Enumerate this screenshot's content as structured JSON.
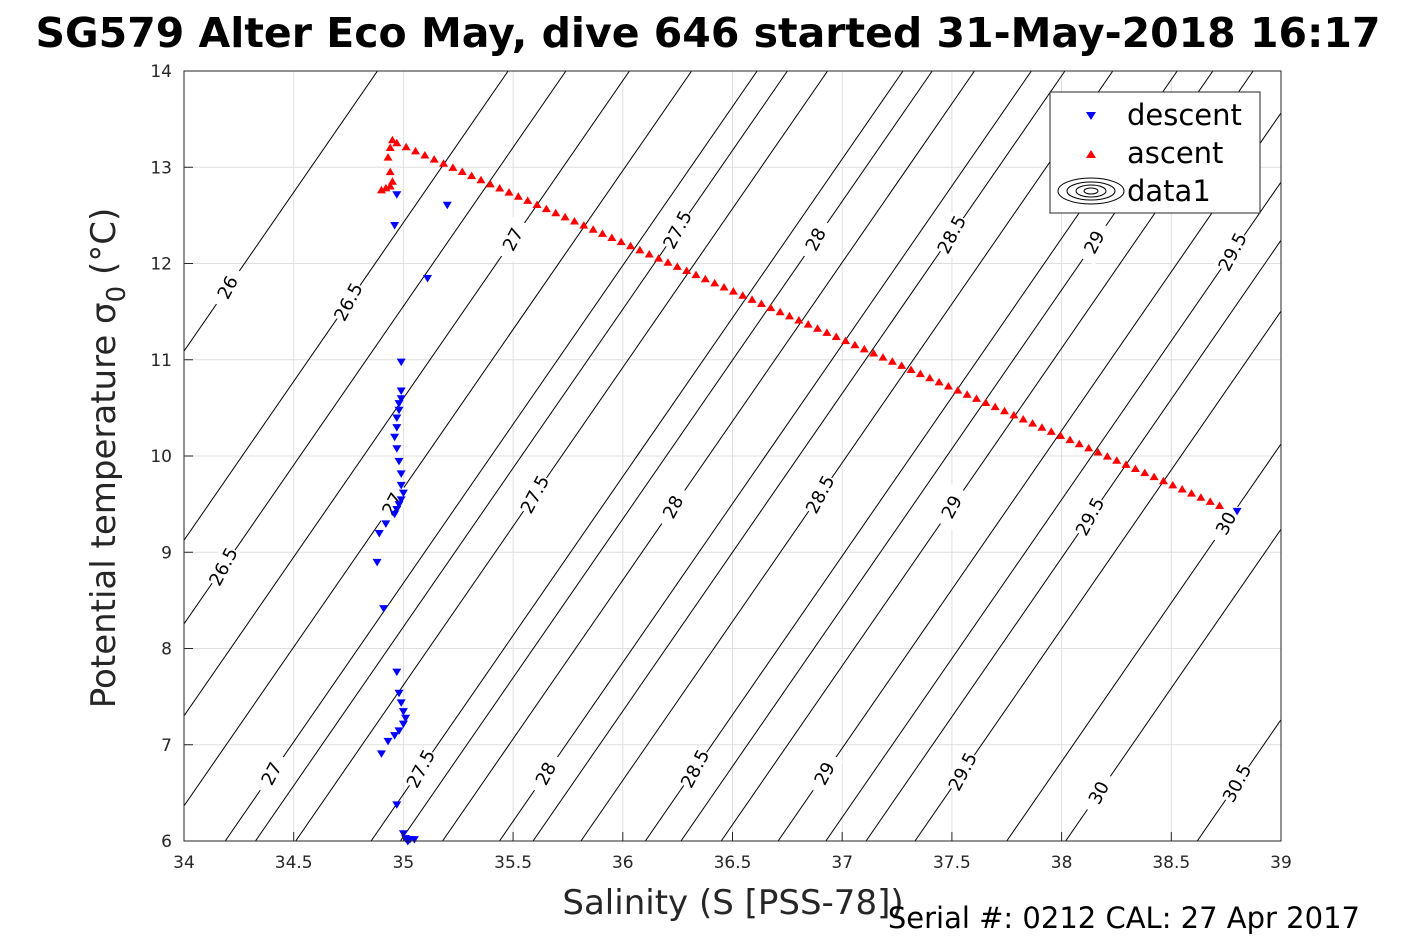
{
  "title": "SG579 Alter Eco May, dive 646 started 31-May-2018 16:17",
  "footer": "Serial #: 0212  CAL: 27 Apr 2017",
  "chart_data": {
    "type": "scatter",
    "xlabel": "Salinity (S [PSS-78])",
    "ylabel": "Potential temperature σ",
    "ylabel_subscript": "0",
    "ylabel_unit": "(°C)",
    "xlim": [
      34,
      39
    ],
    "ylim": [
      6,
      14
    ],
    "xticks": [
      34,
      34.5,
      35,
      35.5,
      36,
      36.5,
      37,
      37.5,
      38,
      38.5,
      39
    ],
    "xtick_labels": [
      "34",
      "34.5",
      "35",
      "35.5",
      "36",
      "36.5",
      "37",
      "37.5",
      "38",
      "38.5",
      "39"
    ],
    "yticks": [
      6,
      7,
      8,
      9,
      10,
      11,
      12,
      13,
      14
    ],
    "ytick_labels": [
      "6",
      "7",
      "8",
      "9",
      "10",
      "11",
      "12",
      "13",
      "14"
    ],
    "grid": true,
    "legend_position": "top-right",
    "series": [
      {
        "name": "descent",
        "marker": "triangle-down",
        "color": "#0000ff",
        "points": [
          [
            34.97,
            12.72
          ],
          [
            34.96,
            12.4
          ],
          [
            35.11,
            11.85
          ],
          [
            35.2,
            12.61
          ],
          [
            34.99,
            10.98
          ],
          [
            34.99,
            10.68
          ],
          [
            34.99,
            10.6
          ],
          [
            34.98,
            10.55
          ],
          [
            34.98,
            10.48
          ],
          [
            34.97,
            10.4
          ],
          [
            34.97,
            10.3
          ],
          [
            34.96,
            10.2
          ],
          [
            34.97,
            10.08
          ],
          [
            34.98,
            9.95
          ],
          [
            34.99,
            9.82
          ],
          [
            34.99,
            9.7
          ],
          [
            35.0,
            9.62
          ],
          [
            34.99,
            9.55
          ],
          [
            34.98,
            9.5
          ],
          [
            34.97,
            9.45
          ],
          [
            34.96,
            9.4
          ],
          [
            34.92,
            9.3
          ],
          [
            34.89,
            9.2
          ],
          [
            34.88,
            8.9
          ],
          [
            34.91,
            8.42
          ],
          [
            34.97,
            7.76
          ],
          [
            34.98,
            7.54
          ],
          [
            34.99,
            7.44
          ],
          [
            35.0,
            7.35
          ],
          [
            35.01,
            7.28
          ],
          [
            35.0,
            7.22
          ],
          [
            34.98,
            7.15
          ],
          [
            34.96,
            7.1
          ],
          [
            34.93,
            7.04
          ],
          [
            34.9,
            6.91
          ],
          [
            34.97,
            6.38
          ],
          [
            35.0,
            6.08
          ],
          [
            35.01,
            6.03
          ],
          [
            35.03,
            6.02
          ],
          [
            35.05,
            6.02
          ],
          [
            35.02,
            6.0
          ],
          [
            38.8,
            9.43
          ]
        ]
      },
      {
        "name": "ascent",
        "marker": "triangle-up",
        "color": "#ff0000",
        "points": [
          [
            34.9,
            12.76
          ],
          [
            34.92,
            12.78
          ],
          [
            34.94,
            12.8
          ],
          [
            34.95,
            12.85
          ],
          [
            34.94,
            12.95
          ],
          [
            34.93,
            13.1
          ],
          [
            34.94,
            13.2
          ],
          [
            34.95,
            13.28
          ],
          [
            34.97,
            13.25
          ],
          [
            38.72,
            9.48
          ]
        ]
      },
      {
        "name": "data1",
        "marker": "contour",
        "color": "#000000"
      }
    ],
    "density_contours": [
      {
        "label": "26",
        "label_at": [
          34.2,
          11.75
        ]
      },
      {
        "label": "26.5",
        "label_at": [
          34.75,
          11.6
        ]
      },
      {
        "label": "26.5",
        "label_at": [
          34.18,
          8.85
        ]
      },
      {
        "label": "27",
        "label_at": [
          35.5,
          12.25
        ]
      },
      {
        "label": "27",
        "label_at": [
          34.95,
          9.5
        ]
      },
      {
        "label": "27",
        "label_at": [
          34.4,
          6.7
        ]
      },
      {
        "label": "27.5",
        "label_at": [
          36.25,
          12.35
        ]
      },
      {
        "label": "27.5",
        "label_at": [
          35.6,
          9.6
        ]
      },
      {
        "label": "27.5",
        "label_at": [
          35.08,
          6.75
        ]
      },
      {
        "label": "28",
        "label_at": [
          36.88,
          12.25
        ]
      },
      {
        "label": "28",
        "label_at": [
          36.23,
          9.47
        ]
      },
      {
        "label": "28",
        "label_at": [
          35.65,
          6.7
        ]
      },
      {
        "label": "28.5",
        "label_at": [
          37.5,
          12.3
        ]
      },
      {
        "label": "28.5",
        "label_at": [
          36.9,
          9.6
        ]
      },
      {
        "label": "28.5",
        "label_at": [
          36.33,
          6.75
        ]
      },
      {
        "label": "29",
        "label_at": [
          38.15,
          12.22
        ]
      },
      {
        "label": "29",
        "label_at": [
          37.5,
          9.47
        ]
      },
      {
        "label": "29",
        "label_at": [
          36.92,
          6.7
        ]
      },
      {
        "label": "29.5",
        "label_at": [
          38.78,
          12.12
        ]
      },
      {
        "label": "29.5",
        "label_at": [
          38.13,
          9.37
        ]
      },
      {
        "label": "29.5",
        "label_at": [
          37.55,
          6.72
        ]
      },
      {
        "label": "30",
        "label_at": [
          38.75,
          9.3
        ]
      },
      {
        "label": "30",
        "label_at": [
          38.17,
          6.5
        ]
      },
      {
        "label": "30.5",
        "label_at": [
          38.8,
          6.6
        ]
      }
    ]
  }
}
